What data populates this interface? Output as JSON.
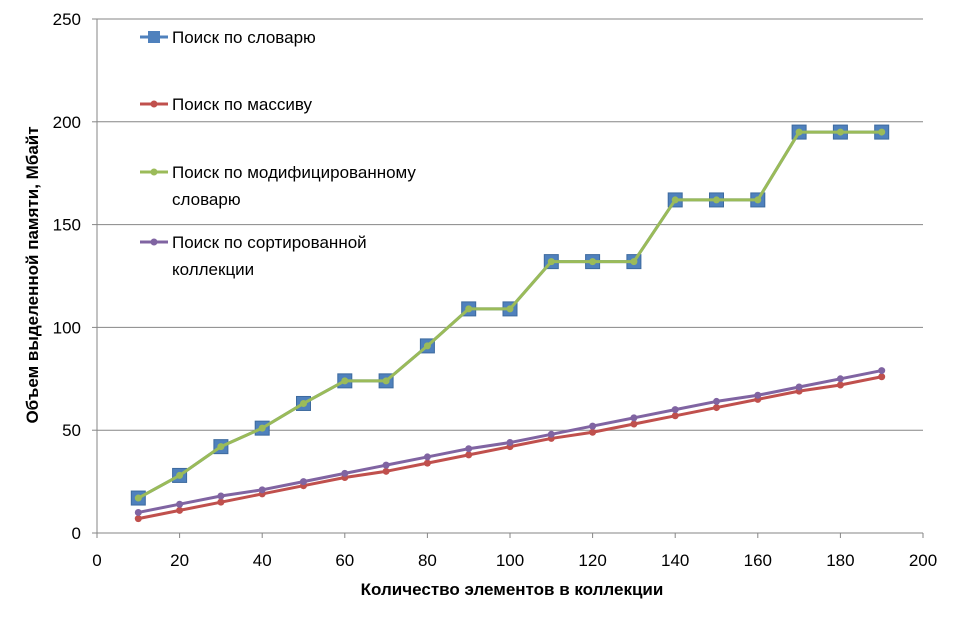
{
  "chart_data": {
    "type": "line",
    "xlabel": "Количество элементов в коллекции",
    "ylabel": "Объем выделенной памяти, Мбайт",
    "xlim": [
      0,
      200
    ],
    "ylim": [
      0,
      250
    ],
    "x_ticks": [
      "0",
      "20",
      "40",
      "60",
      "80",
      "100",
      "120",
      "140",
      "160",
      "180",
      "200"
    ],
    "y_ticks": [
      "0",
      "50",
      "100",
      "150",
      "200",
      "250"
    ],
    "grid": "horizontal",
    "legend_position": "top-left",
    "x": [
      10,
      20,
      30,
      40,
      50,
      60,
      70,
      80,
      90,
      100,
      110,
      120,
      130,
      140,
      150,
      160,
      170,
      180,
      190
    ],
    "series": [
      {
        "name": "Поиск по словарю",
        "color": "#4F81BD",
        "marker": "square",
        "values": [
          17,
          28,
          42,
          51,
          63,
          74,
          74,
          91,
          109,
          109,
          132,
          132,
          132,
          162,
          162,
          162,
          195,
          195,
          195
        ]
      },
      {
        "name": "Поиск по массиву",
        "color": "#C0504D",
        "marker": "circle",
        "values": [
          7,
          11,
          15,
          19,
          23,
          27,
          30,
          34,
          38,
          42,
          46,
          49,
          53,
          57,
          61,
          65,
          69,
          72,
          76
        ]
      },
      {
        "name": "Поиск по модифицированному словарю",
        "label_lines": [
          "Поиск по модифицированному",
          "словарю"
        ],
        "color": "#9BBB59",
        "marker": "circle",
        "values": [
          17,
          28,
          42,
          51,
          63,
          74,
          74,
          91,
          109,
          109,
          132,
          132,
          132,
          162,
          162,
          162,
          195,
          195,
          195
        ]
      },
      {
        "name": "Поиск по сортированной коллекции",
        "label_lines": [
          "Поиск по сортированной",
          "коллекции"
        ],
        "color": "#8064A2",
        "marker": "circle",
        "values": [
          10,
          14,
          18,
          21,
          25,
          29,
          33,
          37,
          41,
          44,
          48,
          52,
          56,
          60,
          64,
          67,
          71,
          75,
          79
        ]
      }
    ]
  }
}
